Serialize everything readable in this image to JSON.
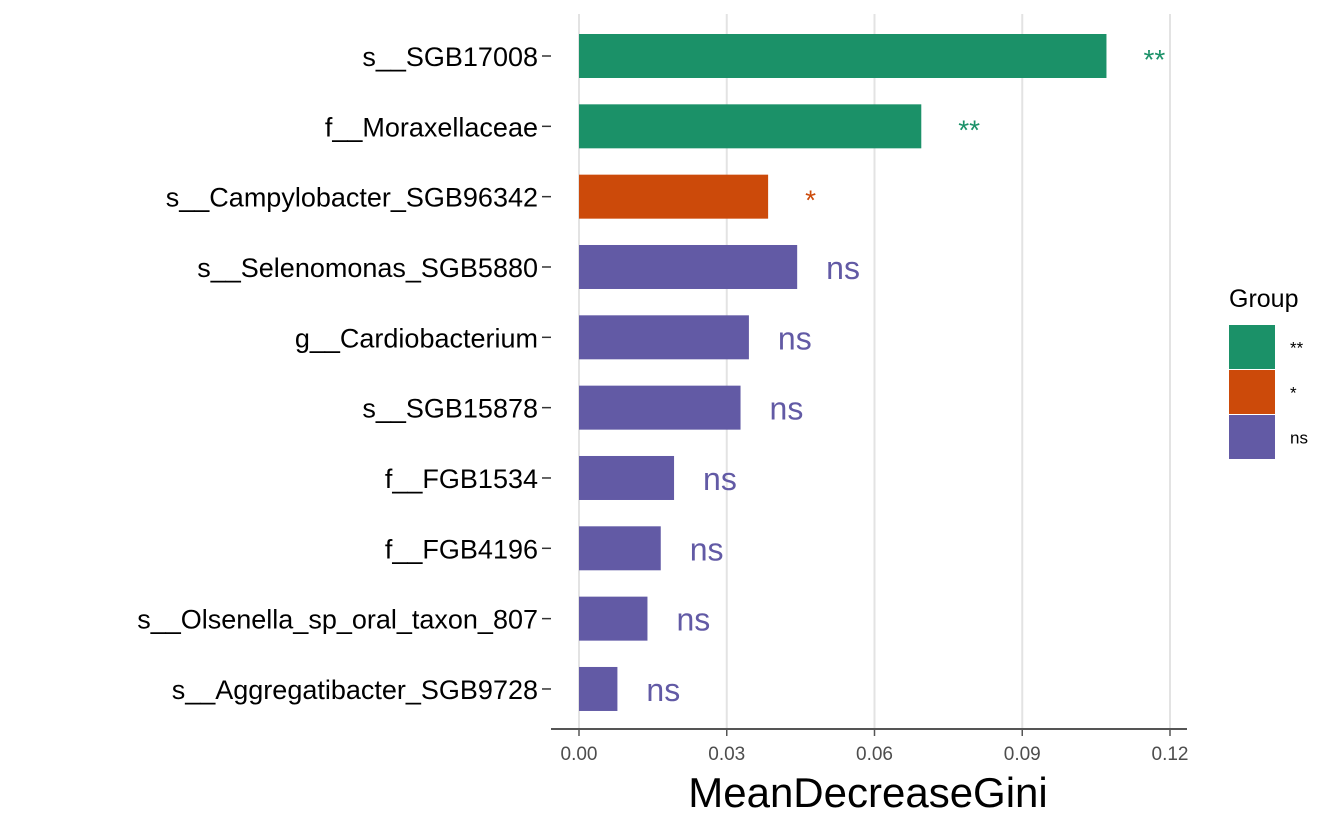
{
  "chart_data": {
    "type": "bar",
    "orientation": "horizontal",
    "categories": [
      "s__SGB17008",
      "f__Moraxellaceae",
      "s__Campylobacter_SGB96342",
      "s__Selenomonas_SGB5880",
      "g__Cardiobacterium",
      "s__SGB15878",
      "f__FGB1534",
      "f__FGB4196",
      "s__Olsenella_sp_oral_taxon_807",
      "s__Aggregatibacter_SGB9728"
    ],
    "values": [
      0.1071,
      0.0695,
      0.0384,
      0.0443,
      0.0345,
      0.0328,
      0.0193,
      0.0166,
      0.0139,
      0.0078
    ],
    "groups": [
      "**",
      "**",
      "*",
      "ns",
      "ns",
      "ns",
      "ns",
      "ns",
      "ns",
      "ns"
    ],
    "xlabel": "MeanDecreaseGini",
    "ylabel": "",
    "xlim": [
      0,
      0.12
    ],
    "xticks": [
      "0.00",
      "0.03",
      "0.06",
      "0.09",
      "0.12"
    ],
    "grid": "vertical",
    "legend": {
      "title": "Group",
      "position": "right",
      "entries": [
        {
          "label": "**",
          "color": "#1b9168"
        },
        {
          "label": "*",
          "color": "#cc4a0a"
        },
        {
          "label": "ns",
          "color": "#625aa5"
        }
      ]
    }
  }
}
